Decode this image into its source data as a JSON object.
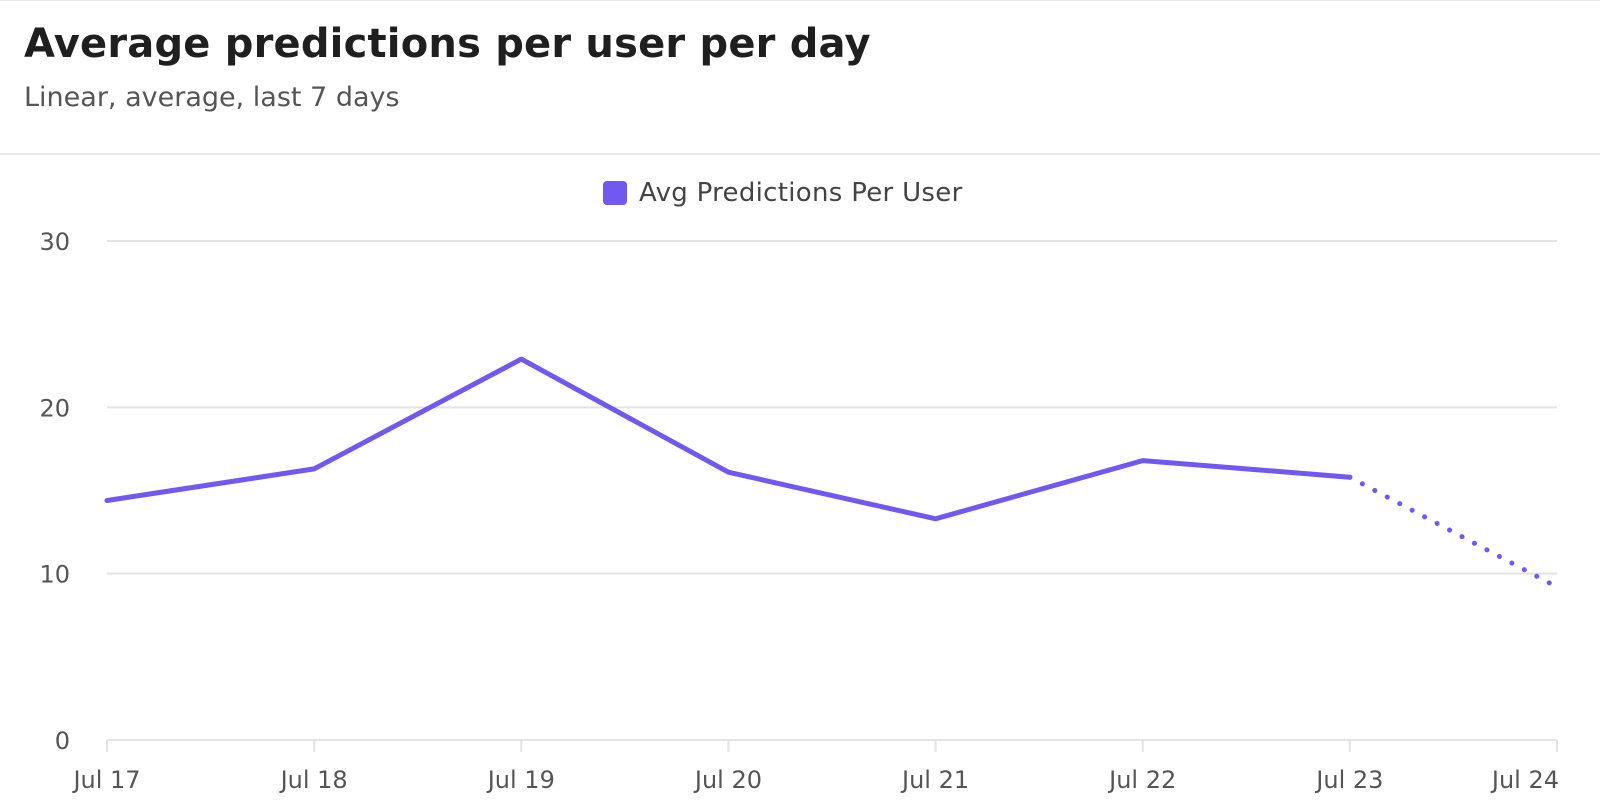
{
  "header": {
    "title": "Average predictions per user per day",
    "subtitle": "Linear, average, last 7 days"
  },
  "legend": {
    "label": "Avg Predictions Per User",
    "color": "#7058F0"
  },
  "chart_data": {
    "type": "line",
    "title": "Average predictions per user per day",
    "subtitle": "Linear, average, last 7 days",
    "xlabel": "",
    "ylabel": "",
    "categories": [
      "Jul 17",
      "Jul 18",
      "Jul 19",
      "Jul 20",
      "Jul 21",
      "Jul 22",
      "Jul 23",
      "Jul 24"
    ],
    "ylim": [
      0,
      30
    ],
    "yticks": [
      "0",
      "10",
      "20",
      "30"
    ],
    "grid": true,
    "legend_position": "top-center",
    "series": [
      {
        "name": "Avg Predictions Per User",
        "color": "#7058F0",
        "values": [
          14.4,
          16.3,
          22.9,
          16.1,
          13.3,
          16.8,
          15.8,
          9.2
        ],
        "incomplete_last_point": true
      }
    ]
  }
}
